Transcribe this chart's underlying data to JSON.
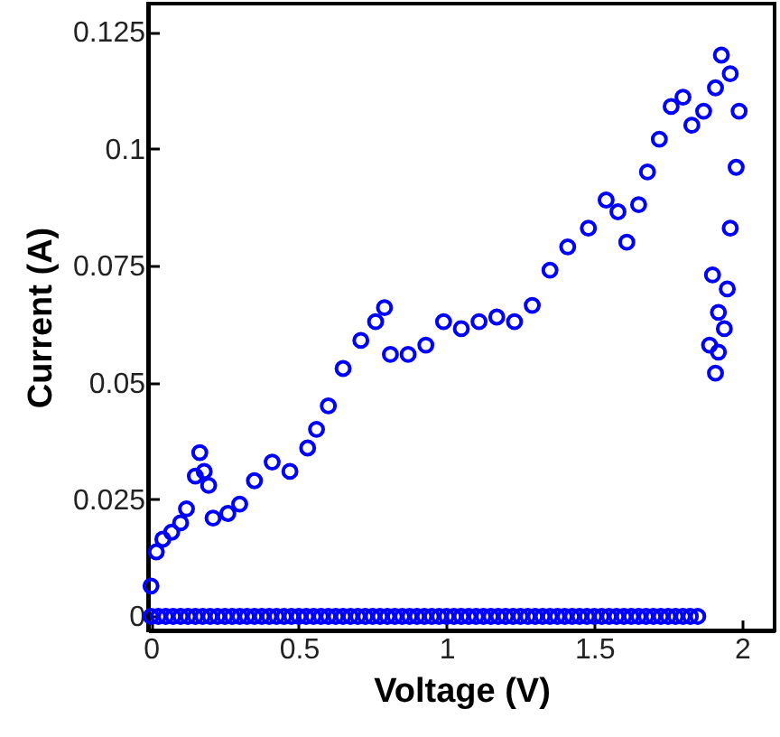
{
  "chart_data": {
    "type": "scatter",
    "xlabel": "Voltage (V)",
    "ylabel": "Current (A)",
    "xlim": [
      -0.01,
      2.11
    ],
    "ylim": [
      -0.003,
      0.131
    ],
    "xticks": [
      0,
      0.5,
      1,
      1.5,
      2
    ],
    "yticks": [
      0,
      0.025,
      0.05,
      0.075,
      0.1,
      0.125
    ],
    "marker": "circle",
    "grid": false,
    "series": [
      {
        "color": "#0000ff",
        "x": [
          0,
          0.018,
          0.04,
          0.07,
          0.1,
          0.12,
          0.15,
          0.165,
          0.18,
          0.195,
          0.21,
          0.26,
          0.3,
          0.35,
          0.41,
          0.47,
          0.53,
          0.56,
          0.6,
          0.65,
          0.71,
          0.76,
          0.79,
          0.81,
          0.87,
          0.93,
          0.99,
          1.05,
          1.11,
          1.17,
          1.23,
          1.29,
          1.35,
          1.41,
          1.48,
          1.54,
          1.58,
          1.61,
          1.65,
          1.68,
          1.72,
          1.76,
          1.8,
          1.83,
          1.87,
          1.91,
          1.93,
          1.96,
          1.99,
          1.98,
          1.96,
          1.89,
          1.9,
          1.92,
          1.95,
          1.94,
          1.92,
          1.91
        ],
        "values": [
          0.0065,
          0.0138,
          0.0165,
          0.018,
          0.02,
          0.023,
          0.03,
          0.035,
          0.031,
          0.028,
          0.021,
          0.022,
          0.024,
          0.029,
          0.033,
          0.031,
          0.036,
          0.04,
          0.045,
          0.053,
          0.059,
          0.063,
          0.066,
          0.056,
          0.056,
          0.058,
          0.063,
          0.0615,
          0.063,
          0.064,
          0.063,
          0.0665,
          0.074,
          0.079,
          0.083,
          0.089,
          0.0865,
          0.08,
          0.088,
          0.095,
          0.102,
          0.109,
          0.111,
          0.105,
          0.108,
          0.113,
          0.12,
          0.116,
          0.108,
          0.096,
          0.083,
          0.058,
          0.073,
          0.065,
          0.07,
          0.0615,
          0.0565,
          0.052
        ]
      },
      {
        "color": "#0000ff",
        "x": [
          0,
          0.025,
          0.05,
          0.075,
          0.1,
          0.125,
          0.15,
          0.175,
          0.2,
          0.225,
          0.25,
          0.275,
          0.3,
          0.325,
          0.35,
          0.375,
          0.4,
          0.425,
          0.45,
          0.475,
          0.5,
          0.525,
          0.55,
          0.575,
          0.6,
          0.625,
          0.65,
          0.675,
          0.7,
          0.725,
          0.75,
          0.775,
          0.8,
          0.825,
          0.85,
          0.875,
          0.9,
          0.925,
          0.95,
          0.975,
          1,
          1.025,
          1.05,
          1.075,
          1.1,
          1.125,
          1.15,
          1.175,
          1.2,
          1.225,
          1.25,
          1.275,
          1.3,
          1.325,
          1.35,
          1.375,
          1.4,
          1.425,
          1.45,
          1.475,
          1.5,
          1.525,
          1.55,
          1.575,
          1.6,
          1.625,
          1.65,
          1.675,
          1.7,
          1.725,
          1.75,
          1.775,
          1.8,
          1.825,
          1.85
        ],
        "values": [
          0,
          0,
          0,
          0,
          0,
          0,
          0,
          0,
          0,
          0,
          0,
          0,
          0,
          0,
          0,
          0,
          0,
          0,
          0,
          0,
          0,
          0,
          0,
          0,
          0,
          0,
          0,
          0,
          0,
          0,
          0,
          0,
          0,
          0,
          0,
          0,
          0,
          0,
          0,
          0,
          0,
          0,
          0,
          0,
          0,
          0,
          0,
          0,
          0,
          0,
          0,
          0,
          0,
          0,
          0,
          0,
          0,
          0,
          0,
          0,
          0,
          0,
          0,
          0,
          0,
          0,
          0,
          0,
          0,
          0,
          0,
          0,
          0,
          0,
          0
        ]
      }
    ]
  }
}
